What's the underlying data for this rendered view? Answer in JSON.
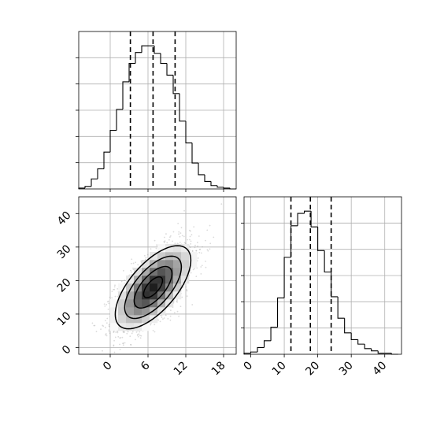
{
  "chart_data": [
    {
      "type": "bar",
      "panel": "top-left",
      "variable": "x",
      "xlim": [
        -5,
        20
      ],
      "bin_edges": [
        -5,
        -4,
        -3,
        -2,
        -1,
        0,
        1,
        2,
        3,
        4,
        5,
        6,
        7,
        8,
        9,
        10,
        11,
        12,
        13,
        14,
        15,
        16,
        17,
        18,
        19,
        20
      ],
      "counts": [
        1,
        3,
        12,
        24,
        44,
        70,
        95,
        128,
        150,
        163,
        171,
        171,
        162,
        150,
        136,
        114,
        81,
        55,
        31,
        17,
        9,
        4,
        2,
        1,
        0
      ],
      "quantile_lines": [
        3.2,
        6.8,
        10.3
      ],
      "tick_labels": []
    },
    {
      "type": "bar",
      "panel": "bottom-right",
      "variable": "y",
      "xlim": [
        -2,
        45
      ],
      "bin_edges": [
        -2,
        0,
        2,
        4,
        6,
        8,
        10,
        12,
        14,
        16,
        18,
        20,
        22,
        24,
        26,
        28,
        30,
        32,
        34,
        36,
        38,
        40,
        42,
        44
      ],
      "counts": [
        1,
        2,
        6,
        12,
        24,
        50,
        86,
        114,
        125,
        127,
        113,
        92,
        73,
        51,
        32,
        19,
        13,
        9,
        5,
        3,
        1,
        1,
        0
      ],
      "quantile_lines": [
        12.0,
        17.8,
        24.0
      ],
      "x_tick_labels": [
        "0",
        "10",
        "20",
        "30",
        "40"
      ]
    },
    {
      "type": "heatmap",
      "panel": "bottom-left",
      "variables": [
        "x",
        "y"
      ],
      "xlim": [
        -5,
        20
      ],
      "ylim": [
        -2,
        45
      ],
      "mean": [
        6.8,
        18.0
      ],
      "std": [
        3.0,
        6.2
      ],
      "correlation": 0.65,
      "contour_levels_sigma": [
        0.5,
        1.0,
        1.5,
        2.0
      ],
      "x_tick_labels": [
        "0",
        "6",
        "12",
        "18"
      ],
      "y_tick_labels": [
        "0",
        "10",
        "20",
        "30",
        "40"
      ]
    }
  ]
}
